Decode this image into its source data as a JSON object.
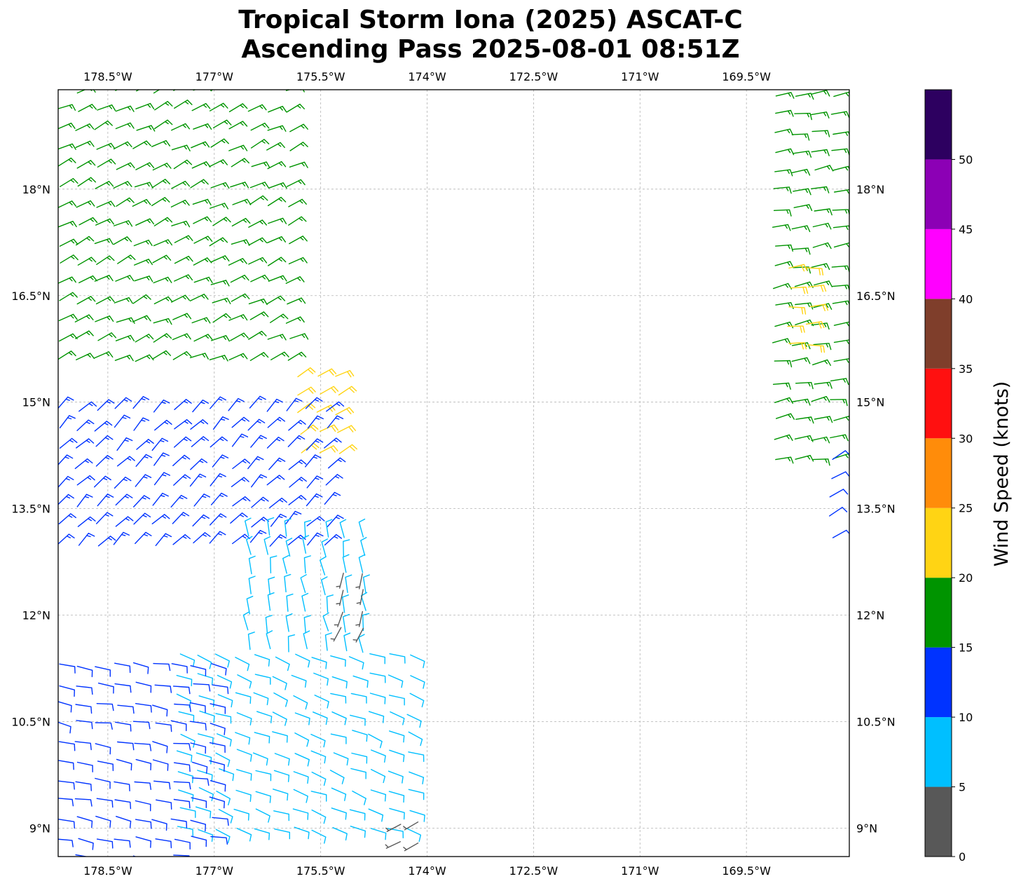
{
  "title_line1": "Tropical Storm Iona (2025) ASCAT-C",
  "title_line2": "Ascending Pass 2025-08-01 08:51Z",
  "map": {
    "lon_range": [
      -179.2,
      -168.05
    ],
    "lat_range": [
      8.6,
      19.4
    ],
    "lon_ticks": [
      -178.5,
      -177,
      -175.5,
      -174,
      -172.5,
      -171,
      -169.5
    ],
    "lat_ticks": [
      9,
      10.5,
      12,
      13.5,
      15,
      16.5,
      18
    ],
    "lon_tick_labels": [
      "178.5°W",
      "177°W",
      "175.5°W",
      "174°W",
      "172.5°W",
      "171°W",
      "169.5°W"
    ],
    "lat_tick_labels": [
      "9°N",
      "10.5°N",
      "12°N",
      "13.5°N",
      "15°N",
      "16.5°N",
      "18°N"
    ],
    "gridlines": true,
    "labels_on": [
      "top",
      "bottom",
      "left",
      "right"
    ]
  },
  "colorbar": {
    "label": "Wind Speed (knots)",
    "tick_labels": [
      "0",
      "5",
      "10",
      "15",
      "20",
      "25",
      "30",
      "35",
      "40",
      "45",
      "50"
    ],
    "bins": [
      {
        "min": 0,
        "max": 5,
        "color": "#585858"
      },
      {
        "min": 5,
        "max": 10,
        "color": "#00bfff"
      },
      {
        "min": 10,
        "max": 15,
        "color": "#0033ff"
      },
      {
        "min": 15,
        "max": 20,
        "color": "#009400"
      },
      {
        "min": 20,
        "max": 25,
        "color": "#ffd414"
      },
      {
        "min": 25,
        "max": 30,
        "color": "#ff8c0a"
      },
      {
        "min": 30,
        "max": 35,
        "color": "#ff1010"
      },
      {
        "min": 35,
        "max": 40,
        "color": "#7f3e2b"
      },
      {
        "min": 40,
        "max": 45,
        "color": "#ff00ff"
      },
      {
        "min": 45,
        "max": 50,
        "color": "#8c00b5"
      },
      {
        "min": 50,
        "max": 55,
        "color": "#2d0060"
      }
    ]
  },
  "chart_data": {
    "type": "wind-barbs",
    "title": "Tropical Storm Iona (2025) ASCAT-C Ascending Pass 2025-08-01 08:51Z",
    "units": "knots",
    "swaths": [
      {
        "name": "west swath",
        "regions": [
          {
            "lat_range": [
              15.6,
              19.4
            ],
            "lon_range": [
              -179.2,
              -175.8
            ],
            "speed_kt": 17,
            "dir_from_deg": 65
          },
          {
            "lat_range": [
              14.3,
              15.6
            ],
            "lon_range": [
              -175.8,
              -175.2
            ],
            "speed_kt": 21,
            "dir_from_deg": 60
          },
          {
            "lat_range": [
              13.0,
              15.0
            ],
            "lon_range": [
              -179.2,
              -175.2
            ],
            "speed_kt": 13,
            "dir_from_deg": 45
          },
          {
            "lat_range": [
              11.5,
              13.3
            ],
            "lon_range": [
              -176.5,
              -174.7
            ],
            "speed_kt": 8,
            "dir_from_deg": 350
          },
          {
            "lat_range": [
              11.8,
              12.8
            ],
            "lon_range": [
              -175.2,
              -174.7
            ],
            "speed_kt": 3,
            "dir_from_deg": 200
          },
          {
            "lat_range": [
              9.0,
              11.5
            ],
            "lon_range": [
              -177.5,
              -174.0
            ],
            "speed_kt": 8,
            "dir_from_deg": 110
          },
          {
            "lat_range": [
              8.6,
              11.5
            ],
            "lon_range": [
              -179.2,
              -177.0
            ],
            "speed_kt": 12,
            "dir_from_deg": 100
          },
          {
            "lat_range": [
              8.8,
              9.2
            ],
            "lon_range": [
              -174.4,
              -174.1
            ],
            "speed_kt": 3,
            "dir_from_deg": 240
          }
        ]
      },
      {
        "name": "east swath",
        "regions": [
          {
            "lat_range": [
              14.2,
              19.4
            ],
            "lon_range": [
              -169.1,
              -168.05
            ],
            "speed_kt": 16,
            "dir_from_deg": 80
          },
          {
            "lat_range": [
              15.8,
              17.0
            ],
            "lon_range": [
              -168.9,
              -168.4
            ],
            "speed_kt": 21,
            "dir_from_deg": 85
          },
          {
            "lat_range": [
              13.1,
              14.3
            ],
            "lon_range": [
              -168.3,
              -168.05
            ],
            "speed_kt": 11,
            "dir_from_deg": 60
          }
        ]
      }
    ]
  }
}
